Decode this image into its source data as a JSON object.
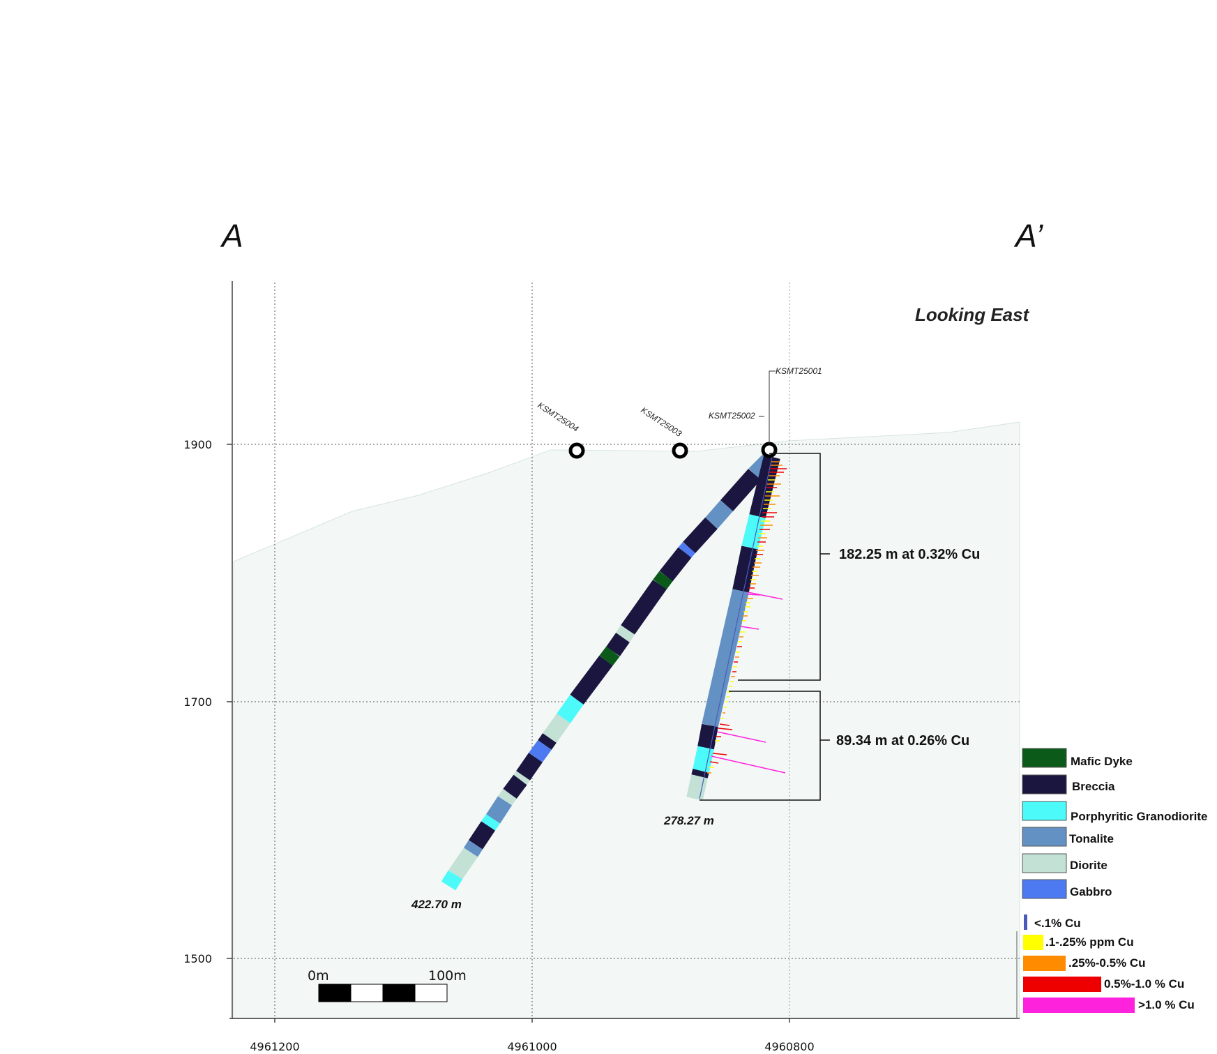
{
  "section": {
    "start_letter": "A",
    "end_letter": "A’",
    "view_label": "Looking East"
  },
  "axes": {
    "x_ticks": [
      "4961200",
      "4961000",
      "4960800"
    ],
    "y_ticks": [
      "1900",
      "1700",
      "1500"
    ]
  },
  "holes": {
    "h1": "KSMT25001",
    "h2": "KSMT25002",
    "h3": "KSMT25003",
    "h4": "KSMT25004"
  },
  "depths": {
    "long_hole": "422.70 m",
    "short_hole": "278.27 m"
  },
  "intervals": {
    "upper": "182.25 m at 0.32% Cu",
    "lower": "89.34 m at 0.26% Cu"
  },
  "scale_bar": {
    "start": "0m",
    "end": "100m"
  },
  "legend": {
    "lithology": [
      {
        "label": "Mafic Dyke",
        "color": "#0b5a1a"
      },
      {
        "label": "Breccia",
        "color": "#1a1640"
      },
      {
        "label": "Porphyritic Granodiorite",
        "color": "#4dfafa"
      },
      {
        "label": "Tonalite",
        "color": "#6491c4"
      },
      {
        "label": "Diorite",
        "color": "#c3e1d5"
      },
      {
        "label": "Gabbro",
        "color": "#4d7af0"
      }
    ],
    "copper": [
      {
        "label": "<.1% Cu",
        "color": "#4a5bb8"
      },
      {
        "label": ".1-.25% ppm Cu",
        "color": "#ffff00"
      },
      {
        "label": ".25%-0.5% Cu",
        "color": "#ff8c00"
      },
      {
        "label": "0.5%-1.0 % Cu",
        "color": "#ee0000"
      },
      {
        "label": ">1.0 % Cu",
        "color": "#ff22dd"
      }
    ]
  }
}
